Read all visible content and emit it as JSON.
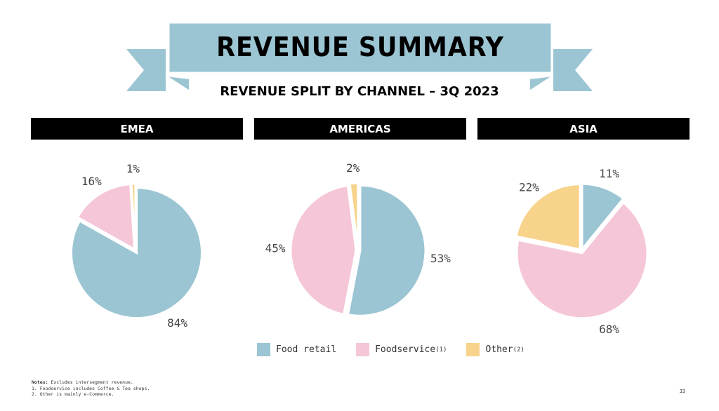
{
  "title": "REVENUE SUMMARY",
  "subtitle": "REVENUE SPLIT BY CHANNEL – 3Q 2023",
  "colors": {
    "food_retail": "#9bc5d3",
    "foodservice": "#f5c6d8",
    "other": "#f7d38c"
  },
  "chart_data": [
    {
      "type": "pie",
      "title": "EMEA",
      "categories": [
        "Food retail",
        "Foodservice",
        "Other"
      ],
      "values": [
        84,
        16,
        1
      ],
      "labels": [
        "84%",
        "16%",
        "1%"
      ]
    },
    {
      "type": "pie",
      "title": "AMERICAS",
      "categories": [
        "Food retail",
        "Foodservice",
        "Other"
      ],
      "values": [
        53,
        45,
        2
      ],
      "labels": [
        "53%",
        "45%",
        "2%"
      ]
    },
    {
      "type": "pie",
      "title": "ASIA",
      "categories": [
        "Food retail",
        "Foodservice",
        "Other"
      ],
      "values": [
        11,
        68,
        22
      ],
      "labels": [
        "11%",
        "68%",
        "22%"
      ]
    }
  ],
  "legend": {
    "food_retail": "Food retail",
    "foodservice": "Foodservice",
    "foodservice_sup": "(1)",
    "other": "Other",
    "other_sup": "(2)"
  },
  "notes": {
    "label": "Notes:",
    "text": "Excludes intersegment revenue.",
    "n1": "1.  Foodservice includes Coffee & Tea shops.",
    "n2": "2.  Other is mainly e-Commerce."
  },
  "page_number": "33"
}
